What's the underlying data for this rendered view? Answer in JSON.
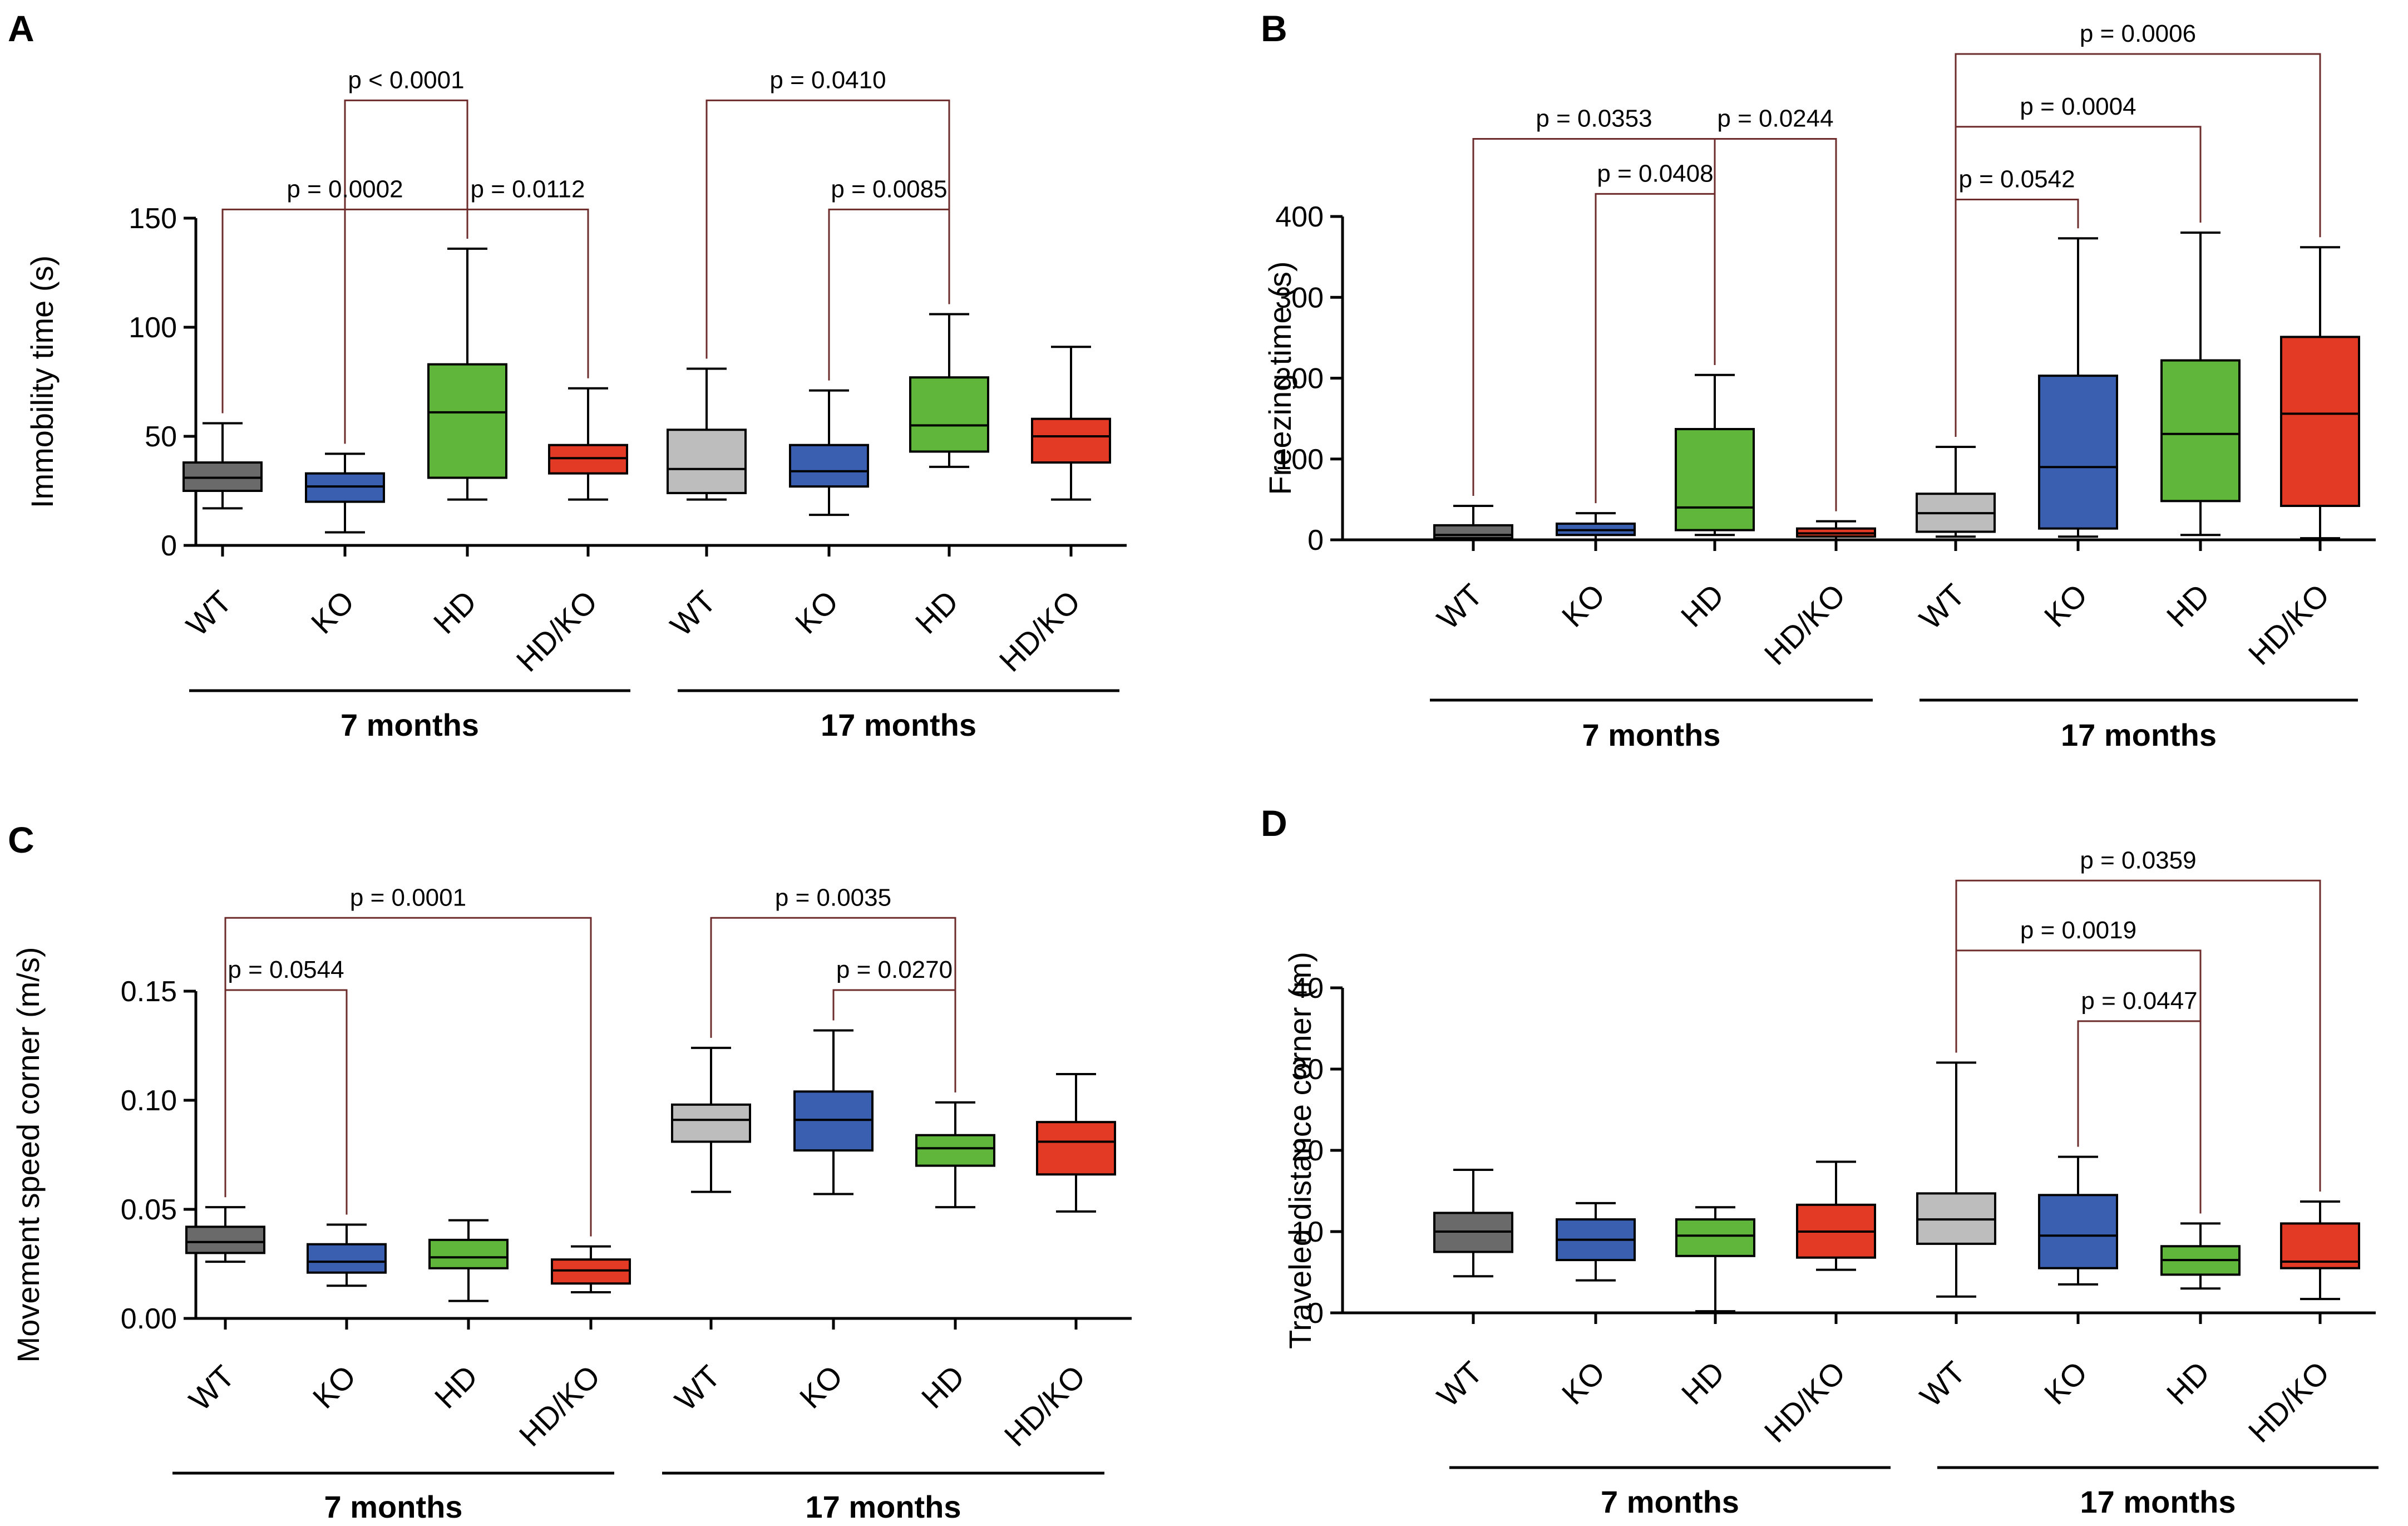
{
  "figure": {
    "panels": [
      "A",
      "B",
      "C",
      "D"
    ]
  },
  "colors": {
    "WT_7": "#6a6a6a",
    "KO": "#3a5fb0",
    "HD": "#5fb63a",
    "HDKO": "#e33a25",
    "WT_17": "#bdbdbd",
    "bracket": "#6e2b2b",
    "axis": "#000000"
  },
  "chart_data": [
    {
      "panel": "A",
      "type": "box",
      "ylabel": "Immobility time (s)",
      "ylim": [
        0,
        150
      ],
      "yticks": [
        "0",
        "50",
        "100",
        "150"
      ],
      "categories": [
        "WT",
        "KO",
        "HD",
        "HD/KO",
        "WT",
        "KO",
        "HD",
        "HD/KO"
      ],
      "groups": [
        {
          "label": "7 months",
          "members": [
            0,
            1,
            2,
            3
          ]
        },
        {
          "label": "17 months",
          "members": [
            4,
            5,
            6,
            7
          ]
        }
      ],
      "boxes": [
        {
          "min": 17,
          "q1": 25,
          "median": 31,
          "q3": 38,
          "max": 56
        },
        {
          "min": 6,
          "q1": 20,
          "median": 27,
          "q3": 33,
          "max": 42
        },
        {
          "min": 21,
          "q1": 31,
          "median": 61,
          "q3": 83,
          "max": 136
        },
        {
          "min": 21,
          "q1": 33,
          "median": 40,
          "q3": 46,
          "max": 72
        },
        {
          "min": 21,
          "q1": 24,
          "median": 35,
          "q3": 53,
          "max": 81
        },
        {
          "min": 14,
          "q1": 27,
          "median": 34,
          "q3": 46,
          "max": 71
        },
        {
          "min": 36,
          "q1": 43,
          "median": 55,
          "q3": 77,
          "max": 106
        },
        {
          "min": 21,
          "q1": 38,
          "median": 50,
          "q3": 58,
          "max": 91
        }
      ],
      "comparisons": [
        {
          "a": 1,
          "b": 2,
          "label": "p < 0.0001",
          "level": 204
        },
        {
          "a": 0,
          "b": 2,
          "label": "p = 0.0002",
          "level": 154
        },
        {
          "a": 2,
          "b": 3,
          "label": "p = 0.0112",
          "level": 154
        },
        {
          "a": 4,
          "b": 6,
          "label": "p = 0.0410",
          "level": 204
        },
        {
          "a": 5,
          "b": 6,
          "label": "p = 0.0085",
          "level": 154
        }
      ]
    },
    {
      "panel": "B",
      "type": "box",
      "ylabel": "Freezing time (s)",
      "ylim": [
        0,
        400
      ],
      "yticks": [
        "0",
        "100",
        "200",
        "300",
        "400"
      ],
      "categories": [
        "WT",
        "KO",
        "HD",
        "HD/KO",
        "WT",
        "KO",
        "HD",
        "HD/KO"
      ],
      "groups": [
        {
          "label": "7 months",
          "members": [
            0,
            1,
            2,
            3
          ]
        },
        {
          "label": "17 months",
          "members": [
            4,
            5,
            6,
            7
          ]
        }
      ],
      "boxes": [
        {
          "min": 0,
          "q1": 2,
          "median": 6,
          "q3": 18,
          "max": 42
        },
        {
          "min": 0,
          "q1": 6,
          "median": 12,
          "q3": 20,
          "max": 33
        },
        {
          "min": 6,
          "q1": 12,
          "median": 40,
          "q3": 137,
          "max": 204
        },
        {
          "min": 0,
          "q1": 4,
          "median": 8,
          "q3": 14,
          "max": 23
        },
        {
          "min": 4,
          "q1": 10,
          "median": 33,
          "q3": 57,
          "max": 115
        },
        {
          "min": 4,
          "q1": 14,
          "median": 90,
          "q3": 203,
          "max": 373
        },
        {
          "min": 6,
          "q1": 48,
          "median": 131,
          "q3": 222,
          "max": 380
        },
        {
          "min": 2,
          "q1": 42,
          "median": 156,
          "q3": 251,
          "max": 362
        }
      ],
      "comparisons": [
        {
          "a": 0,
          "b": 2,
          "label": "p = 0.0353",
          "level": 496
        },
        {
          "a": 2,
          "b": 3,
          "label": "p = 0.0244",
          "level": 496
        },
        {
          "a": 1,
          "b": 2,
          "label": "p = 0.0408",
          "level": 428
        },
        {
          "a": 4,
          "b": 7,
          "label": "p = 0.0006",
          "level": 601
        },
        {
          "a": 4,
          "b": 6,
          "label": "p = 0.0004",
          "level": 511
        },
        {
          "a": 4,
          "b": 5,
          "label": "p = 0.0542",
          "level": 421
        }
      ]
    },
    {
      "panel": "C",
      "type": "box",
      "ylabel": "Movement speed corner (m/s)",
      "ylim": [
        0,
        0.15
      ],
      "yticks": [
        "0.00",
        "0.05",
        "0.10",
        "0.15"
      ],
      "categories": [
        "WT",
        "KO",
        "HD",
        "HD/KO",
        "WT",
        "KO",
        "HD",
        "HD/KO"
      ],
      "groups": [
        {
          "label": "7 months",
          "members": [
            0,
            1,
            2,
            3
          ]
        },
        {
          "label": "17 months",
          "members": [
            4,
            5,
            6,
            7
          ]
        }
      ],
      "boxes": [
        {
          "min": 0.026,
          "q1": 0.03,
          "median": 0.035,
          "q3": 0.042,
          "max": 0.051
        },
        {
          "min": 0.015,
          "q1": 0.021,
          "median": 0.026,
          "q3": 0.034,
          "max": 0.043
        },
        {
          "min": 0.008,
          "q1": 0.023,
          "median": 0.028,
          "q3": 0.036,
          "max": 0.045
        },
        {
          "min": 0.012,
          "q1": 0.016,
          "median": 0.022,
          "q3": 0.027,
          "max": 0.033
        },
        {
          "min": 0.058,
          "q1": 0.081,
          "median": 0.091,
          "q3": 0.098,
          "max": 0.124
        },
        {
          "min": 0.057,
          "q1": 0.077,
          "median": 0.091,
          "q3": 0.104,
          "max": 0.132
        },
        {
          "min": 0.051,
          "q1": 0.07,
          "median": 0.078,
          "q3": 0.084,
          "max": 0.099
        },
        {
          "min": 0.049,
          "q1": 0.066,
          "median": 0.081,
          "q3": 0.09,
          "max": 0.112
        }
      ],
      "comparisons": [
        {
          "a": 0,
          "b": 3,
          "label": "p = 0.0001",
          "level": 0.1836
        },
        {
          "a": 0,
          "b": 1,
          "label": "p = 0.0544",
          "level": 0.1505
        },
        {
          "a": 4,
          "b": 6,
          "label": "p = 0.0035",
          "level": 0.1836
        },
        {
          "a": 5,
          "b": 6,
          "label": "p = 0.0270",
          "level": 0.1505
        }
      ]
    },
    {
      "panel": "D",
      "type": "box",
      "ylabel": "Traveled distance corner (m)",
      "ylim": [
        0,
        40
      ],
      "yticks": [
        "0",
        "10",
        "20",
        "30",
        "40"
      ],
      "categories": [
        "WT",
        "KO",
        "HD",
        "HD/KO",
        "WT",
        "KO",
        "HD",
        "HD/KO"
      ],
      "groups": [
        {
          "label": "7 months",
          "members": [
            0,
            1,
            2,
            3
          ]
        },
        {
          "label": "17 months",
          "members": [
            4,
            5,
            6,
            7
          ]
        }
      ],
      "boxes": [
        {
          "min": 4.5,
          "q1": 7.5,
          "median": 10.0,
          "q3": 12.3,
          "max": 17.6
        },
        {
          "min": 4.0,
          "q1": 6.5,
          "median": 9.0,
          "q3": 11.5,
          "max": 13.5
        },
        {
          "min": 0.2,
          "q1": 7.0,
          "median": 9.5,
          "q3": 11.5,
          "max": 13.0
        },
        {
          "min": 5.3,
          "q1": 6.8,
          "median": 10.0,
          "q3": 13.3,
          "max": 18.6
        },
        {
          "min": 2.0,
          "q1": 8.5,
          "median": 11.5,
          "q3": 14.7,
          "max": 30.8
        },
        {
          "min": 3.5,
          "q1": 5.5,
          "median": 9.5,
          "q3": 14.5,
          "max": 19.2
        },
        {
          "min": 3.0,
          "q1": 4.7,
          "median": 6.5,
          "q3": 8.2,
          "max": 11.0
        },
        {
          "min": 1.7,
          "q1": 5.5,
          "median": 6.3,
          "q3": 11.0,
          "max": 13.7
        }
      ],
      "comparisons": [
        {
          "a": 4,
          "b": 7,
          "label": "p = 0.0359",
          "level": 53.2
        },
        {
          "a": 4,
          "b": 6,
          "label": "p = 0.0019",
          "level": 44.6
        },
        {
          "a": 5,
          "b": 6,
          "label": "p = 0.0447",
          "level": 35.9
        }
      ]
    }
  ]
}
